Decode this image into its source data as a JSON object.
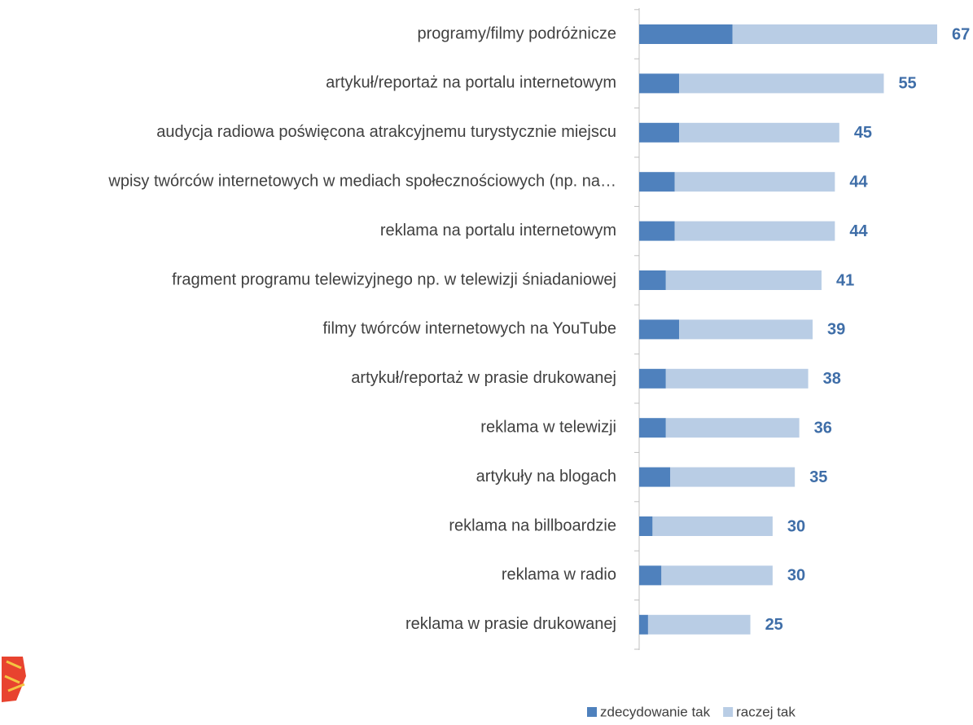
{
  "chart_data": {
    "type": "stacked-barh",
    "categories": [
      "programy/filmy podróżnicze",
      "artykuł/reportaż na portalu internetowym",
      "audycja radiowa poświęcona atrakcyjnemu turystycznie miejscu",
      "wpisy twórców internetowych w mediach społecznościowych (np. na…",
      "reklama na portalu internetowym",
      "fragment programu telewizyjnego np. w telewizji śniadaniowej",
      "filmy twórców internetowych na YouTube",
      "artykuł/reportaż w prasie drukowanej",
      "reklama w telewizji",
      "artykuły na blogach",
      "reklama na billboardzie",
      "reklama w radio",
      "reklama w prasie drukowanej"
    ],
    "series": [
      {
        "name": "zdecydowanie tak",
        "color": "#4f81bd",
        "values": [
          21,
          9,
          9,
          8,
          8,
          6,
          9,
          6,
          6,
          7,
          3,
          5,
          2
        ]
      },
      {
        "name": "raczej tak",
        "color": "#b9cde5",
        "values": [
          46,
          46,
          36,
          36,
          36,
          35,
          30,
          32,
          30,
          28,
          27,
          25,
          23
        ]
      }
    ],
    "totals": [
      67,
      55,
      45,
      44,
      44,
      41,
      39,
      38,
      36,
      35,
      30,
      30,
      25
    ],
    "total_color": "#3f6ea8",
    "xlim": [
      0,
      67
    ],
    "legend": "bottom"
  }
}
